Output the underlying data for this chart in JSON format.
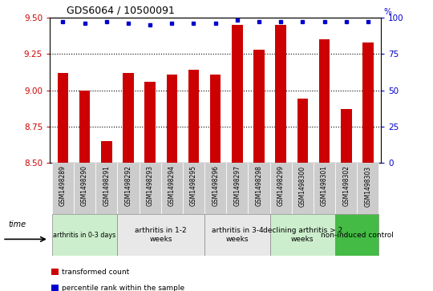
{
  "title": "GDS6064 / 10500091",
  "samples": [
    "GSM1498289",
    "GSM1498290",
    "GSM1498291",
    "GSM1498292",
    "GSM1498293",
    "GSM1498294",
    "GSM1498295",
    "GSM1498296",
    "GSM1498297",
    "GSM1498298",
    "GSM1498299",
    "GSM1498300",
    "GSM1498301",
    "GSM1498302",
    "GSM1498303"
  ],
  "bar_values": [
    9.12,
    9.0,
    8.65,
    9.12,
    9.06,
    9.11,
    9.14,
    9.11,
    9.45,
    9.28,
    9.45,
    8.94,
    9.35,
    8.87,
    9.33
  ],
  "percentile_values": [
    97,
    96,
    97,
    96,
    95,
    96,
    96,
    96,
    98,
    97,
    97,
    97,
    97,
    97,
    97
  ],
  "bar_color": "#cc0000",
  "percentile_color": "#0000cc",
  "ylim_left": [
    8.5,
    9.5
  ],
  "ylim_right": [
    0,
    100
  ],
  "yticks_left": [
    8.5,
    8.75,
    9.0,
    9.25,
    9.5
  ],
  "yticks_right": [
    0,
    25,
    50,
    75,
    100
  ],
  "groups": [
    {
      "label": "arthritis in 0-3 days",
      "indices": [
        0,
        1,
        2
      ],
      "color": "#cceecc"
    },
    {
      "label": "arthritis in 1-2\nweeks",
      "indices": [
        3,
        4,
        5,
        6
      ],
      "color": "#e8e8e8"
    },
    {
      "label": "arthritis in 3-4\nweeks",
      "indices": [
        7,
        8,
        9
      ],
      "color": "#e8e8e8"
    },
    {
      "label": "declining arthritis > 2\nweeks",
      "indices": [
        10,
        11,
        12
      ],
      "color": "#cceecc"
    },
    {
      "label": "non-induced control",
      "indices": [
        13,
        14
      ],
      "color": "#44bb44"
    }
  ],
  "tick_bg_color": "#cccccc",
  "legend_items": [
    {
      "label": "transformed count",
      "color": "#cc0000"
    },
    {
      "label": "percentile rank within the sample",
      "color": "#0000cc"
    }
  ],
  "background_color": "#ffffff",
  "tick_color_left": "#cc0000",
  "tick_color_right": "#0000cc",
  "bar_width": 0.5
}
